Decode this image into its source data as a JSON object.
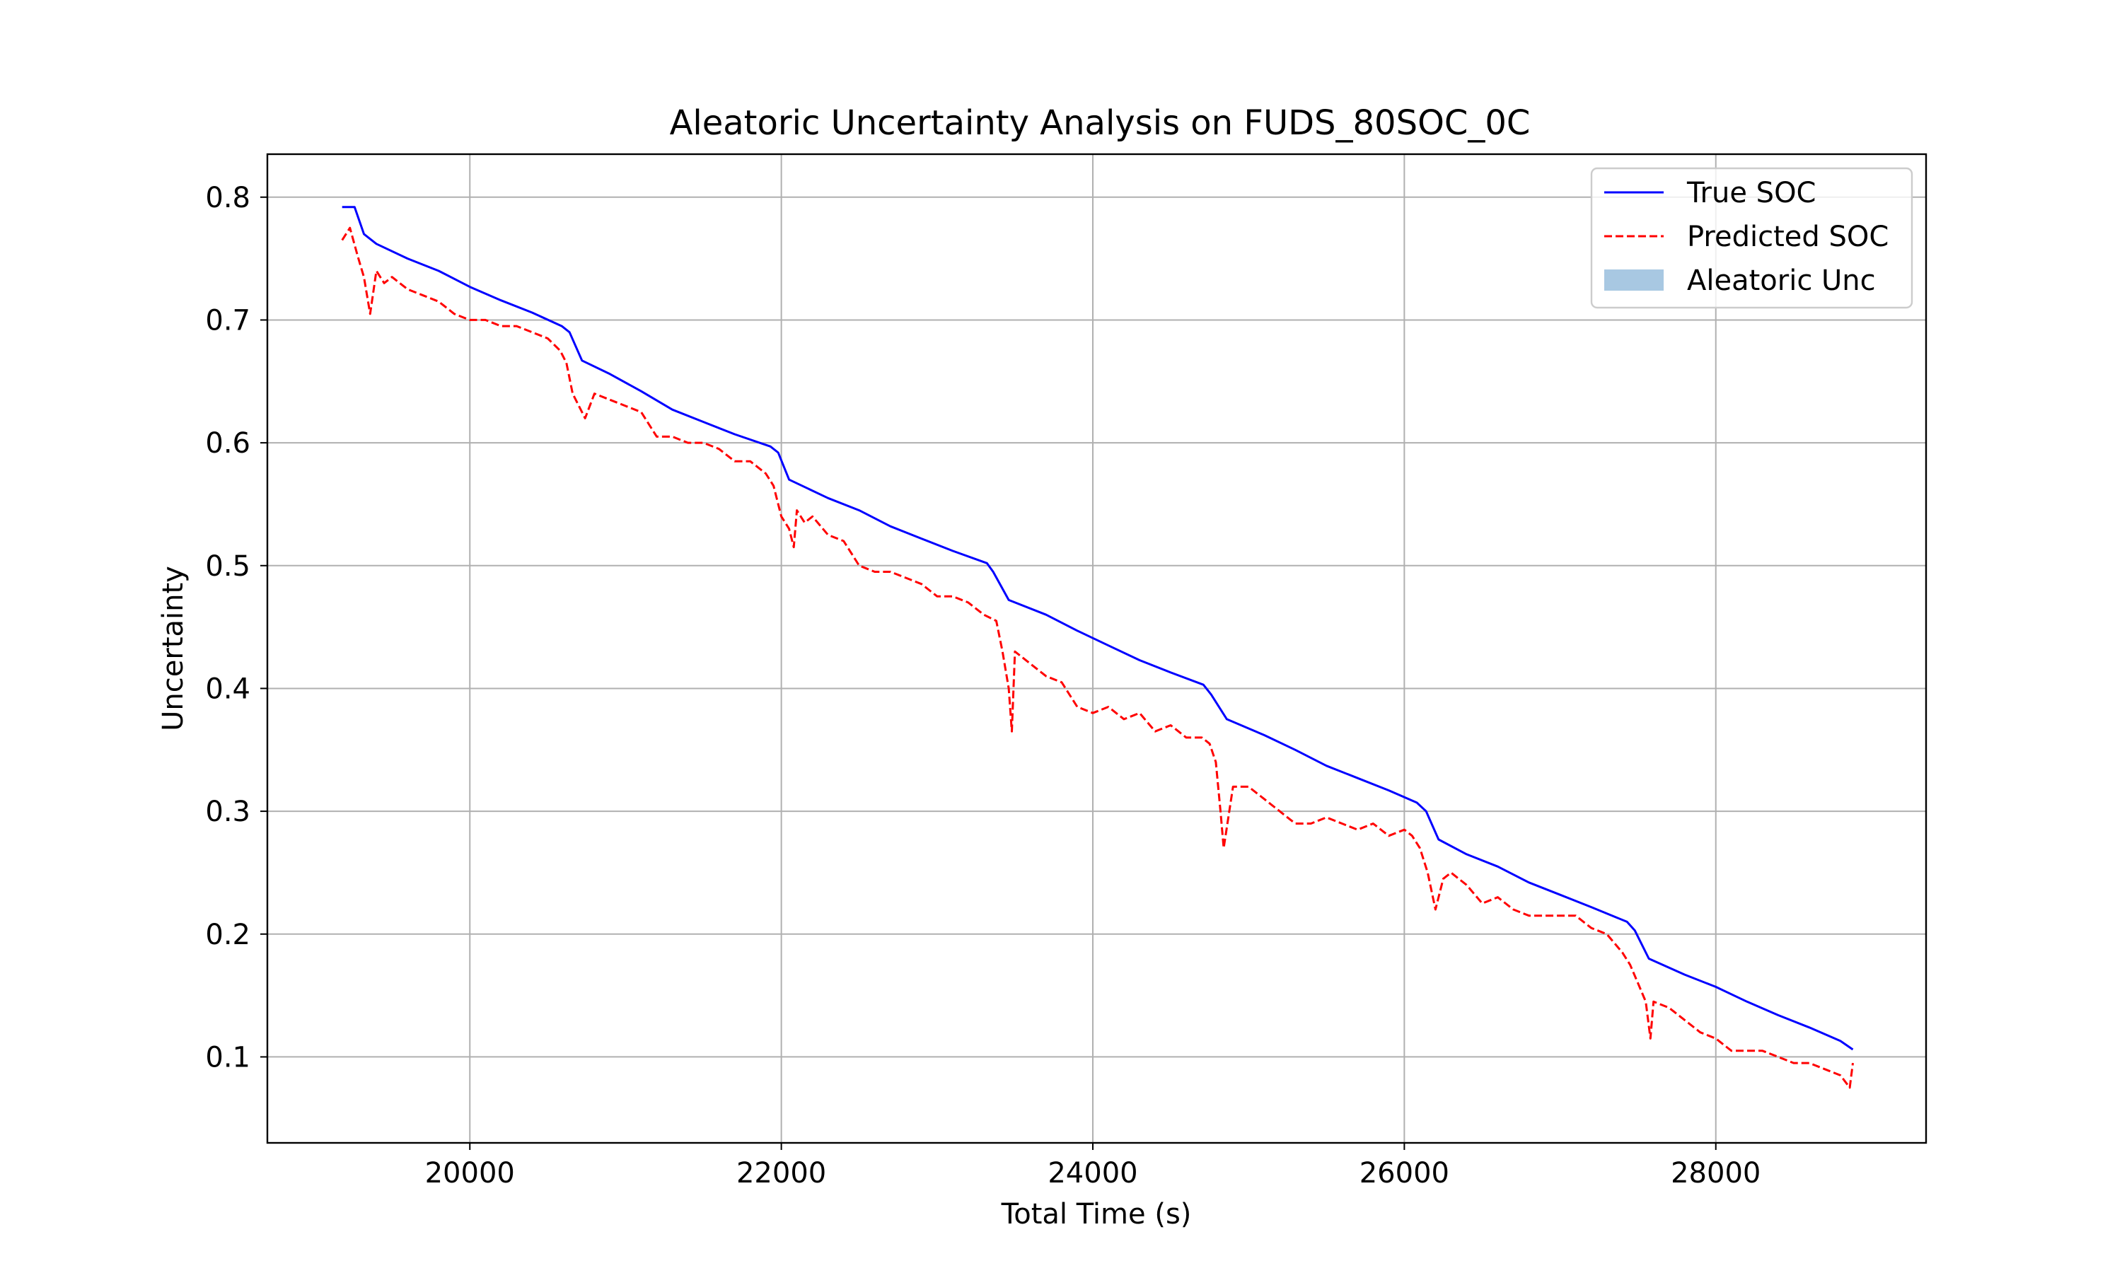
{
  "chart_data": {
    "type": "line",
    "title": "Aleatoric Uncertainty Analysis on FUDS_80SOC_0C",
    "xlabel": "Total Time (s)",
    "ylabel": "Uncertainty",
    "xlim": [
      18700,
      29350
    ],
    "ylim": [
      0.03,
      0.835
    ],
    "xticks": [
      20000,
      22000,
      24000,
      26000,
      28000
    ],
    "yticks": [
      0.1,
      0.2,
      0.3,
      0.4,
      0.5,
      0.6,
      0.7,
      0.8
    ],
    "xtick_labels": [
      "20000",
      "22000",
      "24000",
      "26000",
      "28000"
    ],
    "ytick_labels": [
      "0.1",
      "0.2",
      "0.3",
      "0.4",
      "0.5",
      "0.6",
      "0.7",
      "0.8"
    ],
    "grid": true,
    "legend_position": "top-right",
    "series": [
      {
        "name": "True SOC",
        "color": "#0000ff",
        "style": "solid",
        "x": [
          19180,
          19260,
          19320,
          19400,
          19600,
          19800,
          20000,
          20200,
          20400,
          20590,
          20640,
          20720,
          20900,
          21100,
          21300,
          21500,
          21700,
          21930,
          21980,
          22050,
          22300,
          22500,
          22700,
          22900,
          23100,
          23320,
          23360,
          23460,
          23700,
          23900,
          24100,
          24300,
          24500,
          24710,
          24760,
          24860,
          25100,
          25300,
          25500,
          25700,
          25900,
          26080,
          26140,
          26220,
          26400,
          26600,
          26800,
          27000,
          27200,
          27430,
          27480,
          27570,
          27800,
          28000,
          28200,
          28400,
          28600,
          28800,
          28880
        ],
        "y": [
          0.792,
          0.792,
          0.77,
          0.762,
          0.75,
          0.74,
          0.727,
          0.716,
          0.706,
          0.695,
          0.69,
          0.667,
          0.656,
          0.642,
          0.627,
          0.617,
          0.607,
          0.597,
          0.592,
          0.57,
          0.555,
          0.545,
          0.532,
          0.522,
          0.512,
          0.502,
          0.495,
          0.472,
          0.46,
          0.447,
          0.435,
          0.423,
          0.413,
          0.403,
          0.395,
          0.375,
          0.362,
          0.35,
          0.337,
          0.327,
          0.317,
          0.307,
          0.3,
          0.277,
          0.265,
          0.255,
          0.242,
          0.232,
          0.222,
          0.21,
          0.203,
          0.18,
          0.167,
          0.157,
          0.145,
          0.134,
          0.124,
          0.113,
          0.106
        ]
      },
      {
        "name": "Predicted SOC",
        "color": "#ff0000",
        "style": "dashed",
        "x": [
          19180,
          19230,
          19280,
          19320,
          19360,
          19400,
          19450,
          19500,
          19600,
          19700,
          19800,
          19900,
          20000,
          20100,
          20200,
          20300,
          20400,
          20500,
          20580,
          20620,
          20660,
          20700,
          20740,
          20800,
          20900,
          21000,
          21100,
          21200,
          21300,
          21400,
          21500,
          21600,
          21700,
          21800,
          21900,
          21950,
          22000,
          22050,
          22080,
          22100,
          22150,
          22200,
          22300,
          22400,
          22500,
          22600,
          22700,
          22800,
          22900,
          23000,
          23100,
          23200,
          23300,
          23380,
          23420,
          23460,
          23480,
          23500,
          23600,
          23700,
          23800,
          23900,
          24000,
          24100,
          24200,
          24300,
          24400,
          24500,
          24600,
          24700,
          24750,
          24790,
          24820,
          24840,
          24900,
          25000,
          25100,
          25200,
          25300,
          25400,
          25500,
          25600,
          25700,
          25800,
          25900,
          26000,
          26050,
          26100,
          26150,
          26200,
          26250,
          26300,
          26400,
          26500,
          26600,
          26700,
          26800,
          26900,
          27000,
          27100,
          27200,
          27300,
          27400,
          27450,
          27500,
          27550,
          27580,
          27600,
          27700,
          27800,
          27900,
          28000,
          28100,
          28200,
          28300,
          28400,
          28500,
          28600,
          28700,
          28800,
          28860,
          28880
        ],
        "y": [
          0.765,
          0.775,
          0.752,
          0.735,
          0.705,
          0.74,
          0.73,
          0.735,
          0.725,
          0.72,
          0.715,
          0.705,
          0.7,
          0.7,
          0.695,
          0.695,
          0.69,
          0.685,
          0.675,
          0.665,
          0.64,
          0.63,
          0.62,
          0.64,
          0.635,
          0.63,
          0.625,
          0.605,
          0.605,
          0.6,
          0.6,
          0.595,
          0.585,
          0.585,
          0.575,
          0.565,
          0.54,
          0.53,
          0.515,
          0.545,
          0.535,
          0.54,
          0.525,
          0.52,
          0.5,
          0.495,
          0.495,
          0.49,
          0.485,
          0.475,
          0.475,
          0.47,
          0.46,
          0.455,
          0.43,
          0.4,
          0.365,
          0.43,
          0.42,
          0.41,
          0.405,
          0.385,
          0.38,
          0.385,
          0.375,
          0.38,
          0.365,
          0.37,
          0.36,
          0.36,
          0.355,
          0.34,
          0.3,
          0.27,
          0.32,
          0.32,
          0.31,
          0.3,
          0.29,
          0.29,
          0.295,
          0.29,
          0.285,
          0.29,
          0.28,
          0.285,
          0.28,
          0.27,
          0.25,
          0.22,
          0.245,
          0.25,
          0.24,
          0.225,
          0.23,
          0.22,
          0.215,
          0.215,
          0.215,
          0.215,
          0.205,
          0.2,
          0.185,
          0.175,
          0.16,
          0.145,
          0.115,
          0.145,
          0.14,
          0.13,
          0.12,
          0.115,
          0.105,
          0.105,
          0.105,
          0.1,
          0.095,
          0.095,
          0.09,
          0.085,
          0.075,
          0.095
        ]
      },
      {
        "name": "Aleatoric Unc",
        "color": "#a8c8e2",
        "style": "fill",
        "x": [],
        "y": []
      }
    ]
  }
}
